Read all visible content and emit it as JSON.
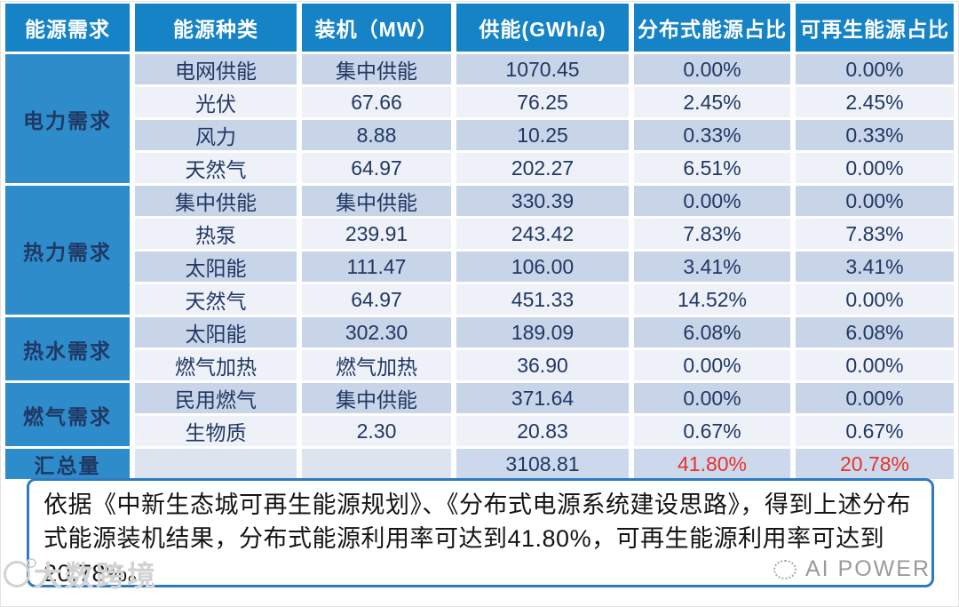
{
  "table": {
    "headers": [
      "能源需求",
      "能源种类",
      "装机（MW）",
      "供能(GWh/a)",
      "分布式能源占比",
      "可再生能源占比"
    ],
    "groups": [
      {
        "label": "电力需求",
        "rows": [
          [
            "电网供能",
            "集中供能",
            "1070.45",
            "0.00%",
            "0.00%"
          ],
          [
            "光伏",
            "67.66",
            "76.25",
            "2.45%",
            "2.45%"
          ],
          [
            "风力",
            "8.88",
            "10.25",
            "0.33%",
            "0.33%"
          ],
          [
            "天然气",
            "64.97",
            "202.27",
            "6.51%",
            "0.00%"
          ]
        ]
      },
      {
        "label": "热力需求",
        "rows": [
          [
            "集中供能",
            "集中供能",
            "330.39",
            "0.00%",
            "0.00%"
          ],
          [
            "热泵",
            "239.91",
            "243.42",
            "7.83%",
            "7.83%"
          ],
          [
            "太阳能",
            "111.47",
            "106.00",
            "3.41%",
            "3.41%"
          ],
          [
            "天然气",
            "64.97",
            "451.33",
            "14.52%",
            "0.00%"
          ]
        ]
      },
      {
        "label": "热水需求",
        "rows": [
          [
            "太阳能",
            "302.30",
            "189.09",
            "6.08%",
            "6.08%"
          ],
          [
            "燃气加热",
            "燃气加热",
            "36.90",
            "0.00%",
            "0.00%"
          ]
        ]
      },
      {
        "label": "燃气需求",
        "rows": [
          [
            "民用燃气",
            "集中供能",
            "371.64",
            "0.00%",
            "0.00%"
          ],
          [
            "生物质",
            "2.30",
            "20.83",
            "0.67%",
            "0.67%"
          ]
        ]
      }
    ],
    "total": {
      "label": "汇总量",
      "energy_type": "",
      "capacity": "",
      "supply": "3108.81",
      "distributed_share": "41.80%",
      "renewable_share": "20.78%"
    }
  },
  "note": {
    "text": "依据《中新生态城可再生能源规划》、《分布式电源系统建设思路》，得到上述分布式能源装机结果，分布式能源利用率可达到41.80%，可再生能源利用率可达到20.78%。"
  },
  "watermarks": {
    "bottom_left": "大数跨境",
    "bottom_right": "AI POWER"
  },
  "colors": {
    "header_bg": "#1583c6",
    "group_bg": "#2e8ccb",
    "row_dark": "#c8d4e8",
    "row_light": "#eef1f8",
    "total_row_bg": "#ccd9ec",
    "text_navy": "#203864",
    "total_red": "#e8332a",
    "note_border": "#2f7ac0"
  }
}
